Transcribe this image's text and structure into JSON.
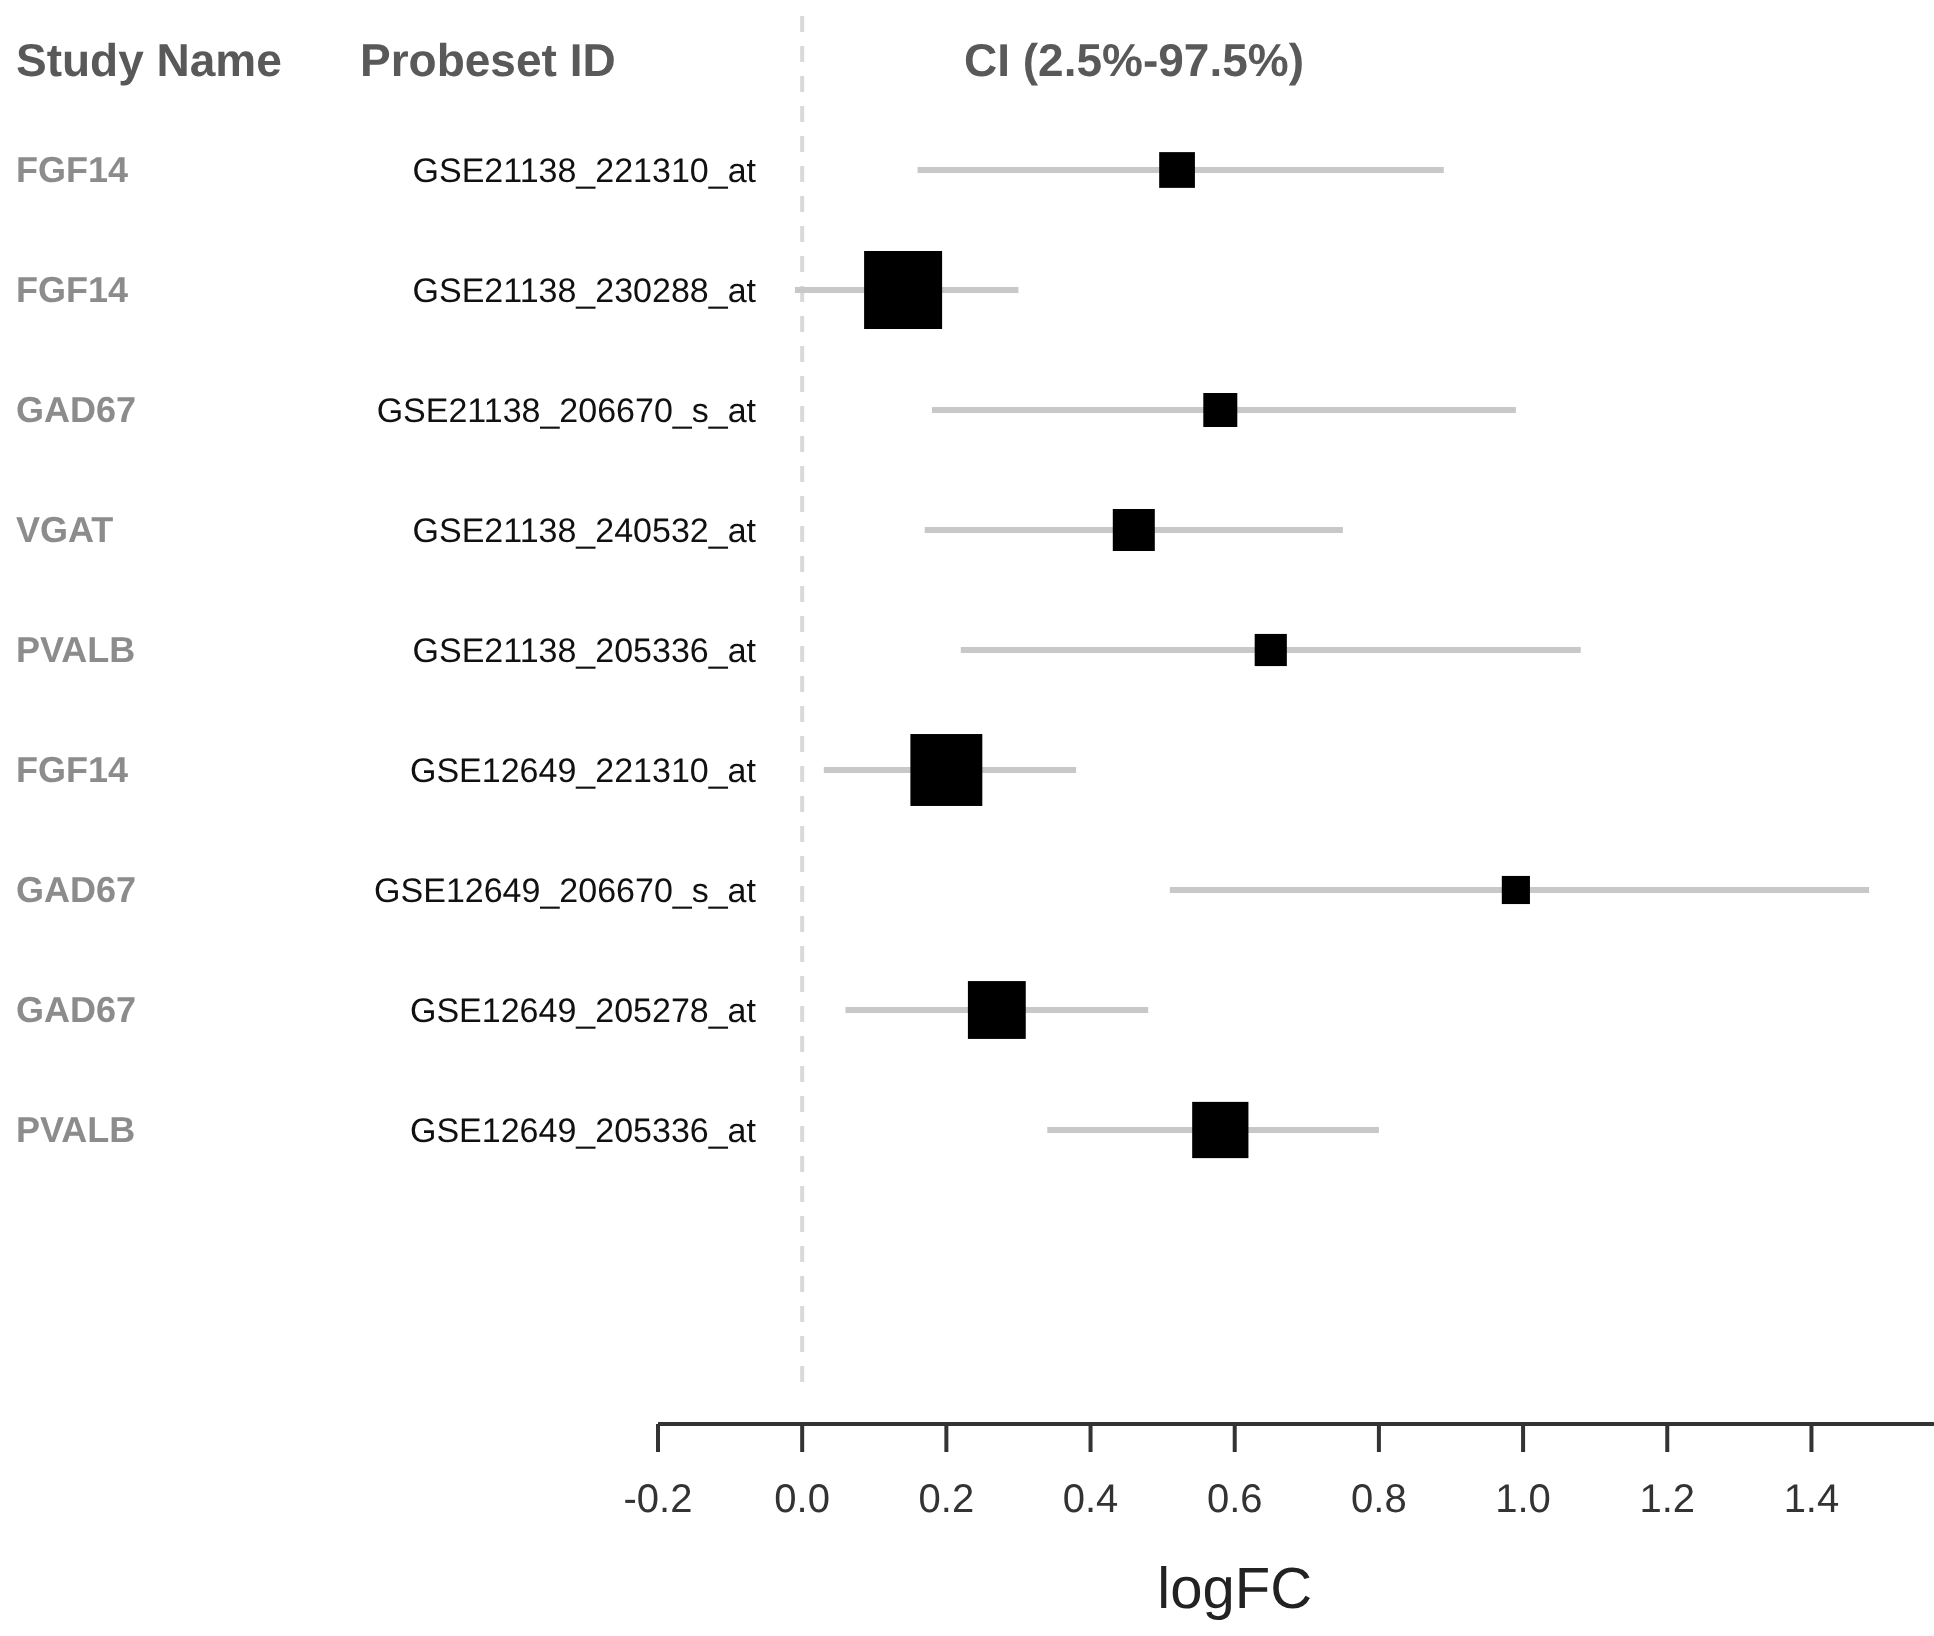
{
  "chart_data": {
    "type": "bubble",
    "title": "CI (2.5%-97.5%)",
    "xlabel": "logFC",
    "orientation": "horizontal",
    "categories": [
      "GSE21138_221310_at",
      "GSE21138_230288_at",
      "GSE21138_206670_s_at",
      "GSE21138_240532_at",
      "GSE21138_205336_at",
      "GSE12649_221310_at",
      "GSE12649_206670_s_at",
      "GSE12649_205278_at",
      "GSE12649_205336_at"
    ],
    "series": [
      {
        "color": "#000000",
        "values": [
          0.52,
          0.14,
          0.58,
          0.46,
          0.65,
          0.2,
          0.99,
          0.27,
          0.58
        ],
        "sizes": [
          0.21,
          1,
          0.19,
          0.29,
          0.17,
          0.85,
          0.13,
          0.55,
          0.52
        ],
        "errors": [
          [
            0.16,
            0.89
          ],
          [
            -0.01,
            0.3
          ],
          [
            0.18,
            0.99
          ],
          [
            0.17,
            0.75
          ],
          [
            0.22,
            1.08
          ],
          [
            0.03,
            0.38
          ],
          [
            0.51,
            1.48
          ],
          [
            0.06,
            0.48
          ],
          [
            0.34,
            0.8
          ]
        ]
      }
    ],
    "marker": "square",
    "xlim": [
      -0.2,
      1.57
    ],
    "xticks": [
      {
        "value": -0.2,
        "label": "-0.2"
      },
      {
        "value": 0,
        "label": "0.0"
      },
      {
        "value": 0.2,
        "label": "0.2"
      },
      {
        "value": 0.4,
        "label": "0.4"
      },
      {
        "value": 0.6,
        "label": "0.6"
      },
      {
        "value": 0.8,
        "label": "0.8"
      },
      {
        "value": 1,
        "label": "1.0"
      },
      {
        "value": 1.2,
        "label": "1.2"
      },
      {
        "value": 1.4,
        "label": "1.4"
      }
    ],
    "grid": false,
    "ref_lines": [
      {
        "axis": "x",
        "value": 0,
        "color": "#d9d9d9",
        "line_style": "dashed"
      }
    ],
    "annotations": [
      "Study Name",
      "Probeset ID",
      "FGF14",
      "FGF14",
      "GAD67",
      "VGAT",
      "PVALB",
      "FGF14",
      "GAD67",
      "GAD67",
      "PVALB"
    ]
  }
}
